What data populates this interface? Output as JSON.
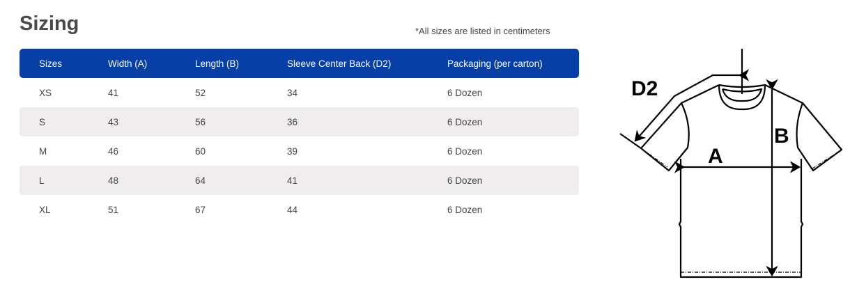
{
  "title": "Sizing",
  "note": "*All sizes are listed in centimeters",
  "table": {
    "headers": [
      "Sizes",
      "Width (A)",
      "Length (B)",
      "Sleeve Center Back (D2)",
      "Packaging (per carton)"
    ],
    "rows": [
      [
        "XS",
        "41",
        "52",
        "34",
        "6 Dozen"
      ],
      [
        "S",
        "43",
        "56",
        "36",
        "6 Dozen"
      ],
      [
        "M",
        "46",
        "60",
        "39",
        "6 Dozen"
      ],
      [
        "L",
        "48",
        "64",
        "41",
        "6 Dozen"
      ],
      [
        "XL",
        "51",
        "67",
        "44",
        "6 Dozen"
      ]
    ]
  },
  "diagram": {
    "label_d2": "D2",
    "label_a": "A",
    "label_b": "B"
  }
}
